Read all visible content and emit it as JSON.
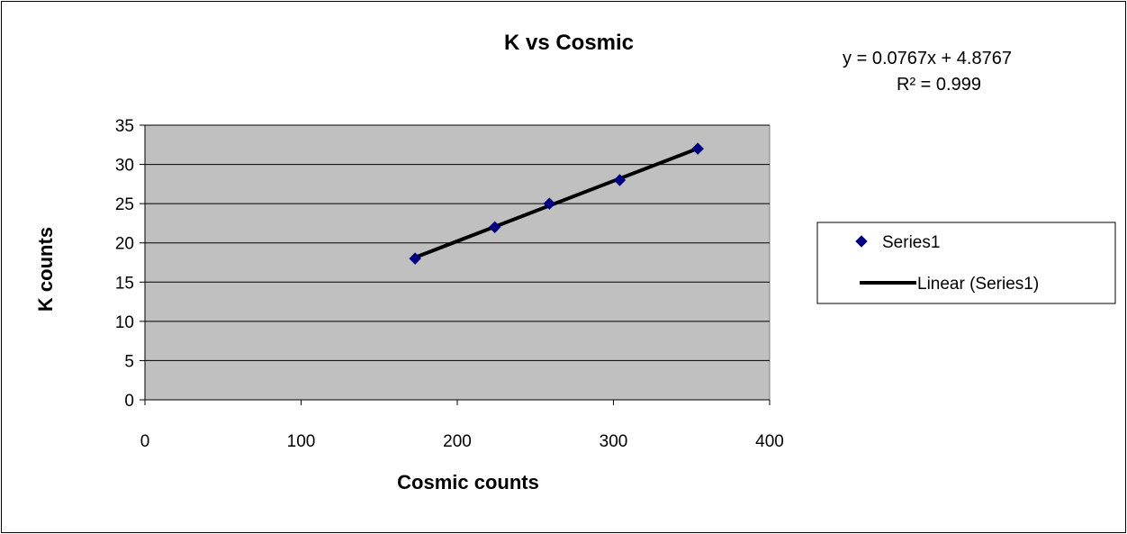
{
  "chart_data": {
    "type": "scatter",
    "title": "K vs Cosmic",
    "xlabel": "Cosmic counts",
    "ylabel": "K counts",
    "xlim": [
      0,
      400
    ],
    "ylim": [
      0,
      35
    ],
    "x_ticks": [
      0,
      100,
      200,
      300,
      400
    ],
    "y_ticks": [
      0,
      5,
      10,
      15,
      20,
      25,
      30,
      35
    ],
    "grid": "horizontal",
    "plot_background": "#c0c0c0",
    "legend_position": "right",
    "series": [
      {
        "name": "Series1",
        "marker": "diamond",
        "color": "#000080",
        "x": [
          173,
          224,
          259,
          304,
          354
        ],
        "y": [
          18,
          22,
          25,
          28,
          32
        ]
      }
    ],
    "trendline": {
      "name": "Linear (Series1)",
      "color": "#000000",
      "slope": 0.0767,
      "intercept": 4.8767,
      "x_range": [
        173,
        354
      ],
      "equation": "y = 0.0767x + 4.8767",
      "r_squared": "R² = 0.999"
    }
  }
}
